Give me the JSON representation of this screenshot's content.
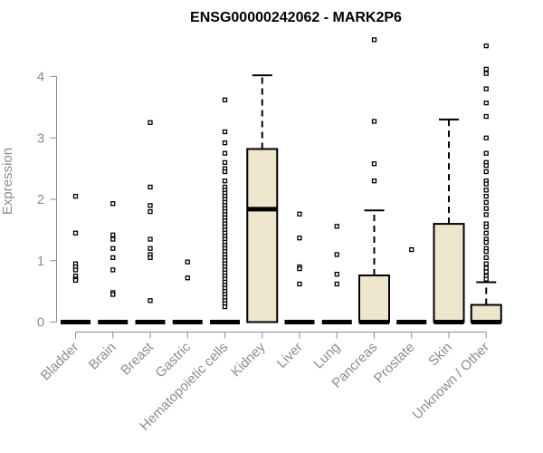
{
  "chart_data": {
    "type": "box",
    "title": "ENSG00000242062 - MARK2P6",
    "xlabel": "",
    "ylabel": "Expression",
    "ylim": [
      0,
      4.6
    ],
    "yticks": [
      0,
      1,
      2,
      3,
      4
    ],
    "grid": false,
    "legend": "none",
    "colors": {
      "box_fill": "#ede5cc",
      "line": "#000000",
      "axis": "#8c8c8c"
    },
    "categories": [
      "Bladder",
      "Brain",
      "Breast",
      "Gastric",
      "Hematopoietic cells",
      "Kidney",
      "Liver",
      "Lung",
      "Pancreas",
      "Prostate",
      "Skin",
      "Unknown / Other"
    ],
    "boxes": [
      {
        "category": "Bladder",
        "min": 0,
        "q1": 0,
        "median": 0,
        "q3": 0,
        "max": 0,
        "outliers": [
          2.05,
          1.45,
          0.95,
          0.9,
          0.85,
          0.75,
          0.7,
          0.68
        ]
      },
      {
        "category": "Brain",
        "min": 0,
        "q1": 0,
        "median": 0,
        "q3": 0,
        "max": 0,
        "outliers": [
          1.93,
          1.42,
          1.35,
          1.2,
          1.05,
          0.85,
          0.48,
          0.45
        ]
      },
      {
        "category": "Breast",
        "min": 0,
        "q1": 0,
        "median": 0,
        "q3": 0,
        "max": 0,
        "outliers": [
          3.25,
          2.2,
          1.9,
          1.8,
          1.35,
          1.2,
          1.1,
          1.05,
          0.35
        ]
      },
      {
        "category": "Gastric",
        "min": 0,
        "q1": 0,
        "median": 0,
        "q3": 0,
        "max": 0,
        "outliers": [
          0.98,
          0.72
        ]
      },
      {
        "category": "Hematopoietic cells",
        "min": 0,
        "q1": 0,
        "median": 0,
        "q3": 0,
        "max": 0,
        "outliers": [
          3.62,
          3.1,
          2.92,
          2.75,
          2.6,
          2.5,
          2.45,
          2.3,
          2.2,
          2.15,
          2.1,
          2.05,
          2.0,
          1.95,
          1.9,
          1.85,
          1.8,
          1.75,
          1.7,
          1.65,
          1.6,
          1.55,
          1.5,
          1.45,
          1.4,
          1.35,
          1.3,
          1.25,
          1.2,
          1.15,
          1.1,
          1.05,
          1.0,
          0.95,
          0.9,
          0.85,
          0.8,
          0.75,
          0.7,
          0.65,
          0.6,
          0.55,
          0.5,
          0.45,
          0.4,
          0.35,
          0.3,
          0.25
        ]
      },
      {
        "category": "Kidney",
        "min": 0,
        "q1": 0,
        "median": 1.84,
        "q3": 2.82,
        "max": 4.02,
        "outliers": []
      },
      {
        "category": "Liver",
        "min": 0,
        "q1": 0,
        "median": 0,
        "q3": 0,
        "max": 0,
        "outliers": [
          1.76,
          1.37,
          0.9,
          0.87,
          0.62
        ]
      },
      {
        "category": "Lung",
        "min": 0,
        "q1": 0,
        "median": 0,
        "q3": 0,
        "max": 0,
        "outliers": [
          1.56,
          1.1,
          0.78,
          0.62
        ]
      },
      {
        "category": "Pancreas",
        "min": 0,
        "q1": 0,
        "median": 0,
        "q3": 0.76,
        "max": 1.82,
        "outliers": [
          4.6,
          3.27,
          2.58,
          2.3
        ]
      },
      {
        "category": "Prostate",
        "min": 0,
        "q1": 0,
        "median": 0,
        "q3": 0,
        "max": 0,
        "outliers": [
          1.18
        ]
      },
      {
        "category": "Skin",
        "min": 0,
        "q1": 0,
        "median": 0,
        "q3": 1.6,
        "max": 3.3,
        "outliers": []
      },
      {
        "category": "Unknown / Other",
        "min": 0,
        "q1": 0,
        "median": 0,
        "q3": 0.28,
        "max": 0.65,
        "outliers": [
          4.5,
          4.12,
          4.05,
          3.8,
          3.57,
          3.35,
          3.0,
          2.75,
          2.6,
          2.55,
          2.45,
          2.3,
          2.25,
          2.15,
          2.05,
          1.95,
          1.85,
          1.75,
          1.6,
          1.55,
          1.45,
          1.35,
          1.3,
          1.2,
          1.15,
          1.05,
          0.95,
          0.88,
          0.82,
          0.75,
          0.7
        ]
      }
    ]
  }
}
